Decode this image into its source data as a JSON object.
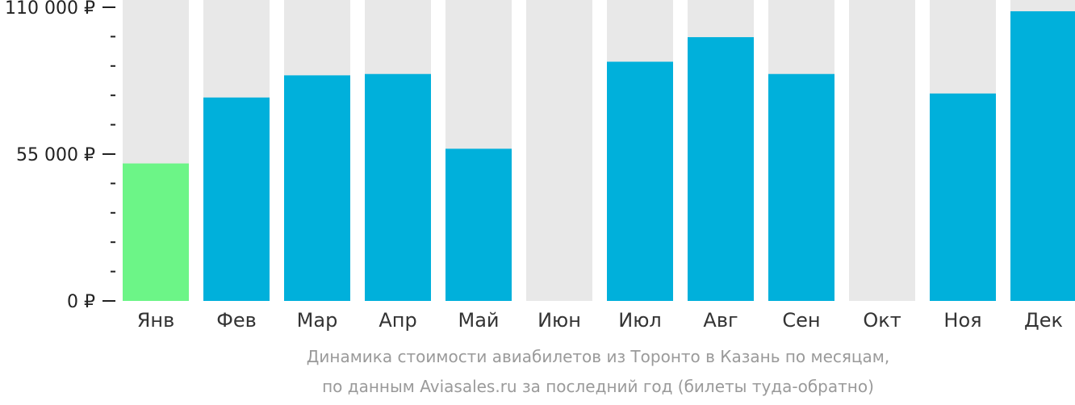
{
  "chart_data": {
    "type": "bar",
    "categories": [
      "Янв",
      "Фев",
      "Мар",
      "Апр",
      "Май",
      "Июн",
      "Июл",
      "Авг",
      "Сен",
      "Окт",
      "Ноя",
      "Дек"
    ],
    "values": [
      51500,
      76200,
      84500,
      85000,
      57000,
      null,
      89600,
      98800,
      85000,
      null,
      77700,
      108500
    ],
    "ylim": [
      0,
      110000
    ],
    "y_tick_labels": [
      "0 ₽",
      "55 000 ₽",
      "110 000 ₽"
    ],
    "y_tick_values": [
      0,
      55000,
      110000
    ],
    "minor_ticks_per_interval": 4,
    "highlight_index": 0,
    "colors": {
      "bar": "#00b0db",
      "highlight": "#6cf587",
      "background_bar": "#e8e8e8",
      "axis": "#222222"
    }
  },
  "caption": {
    "line1": "Динамика стоимости авиабилетов из Торонто в Казань по месяцам,",
    "line2": "по данным Aviasales.ru за последний год (билеты туда-обратно)"
  }
}
